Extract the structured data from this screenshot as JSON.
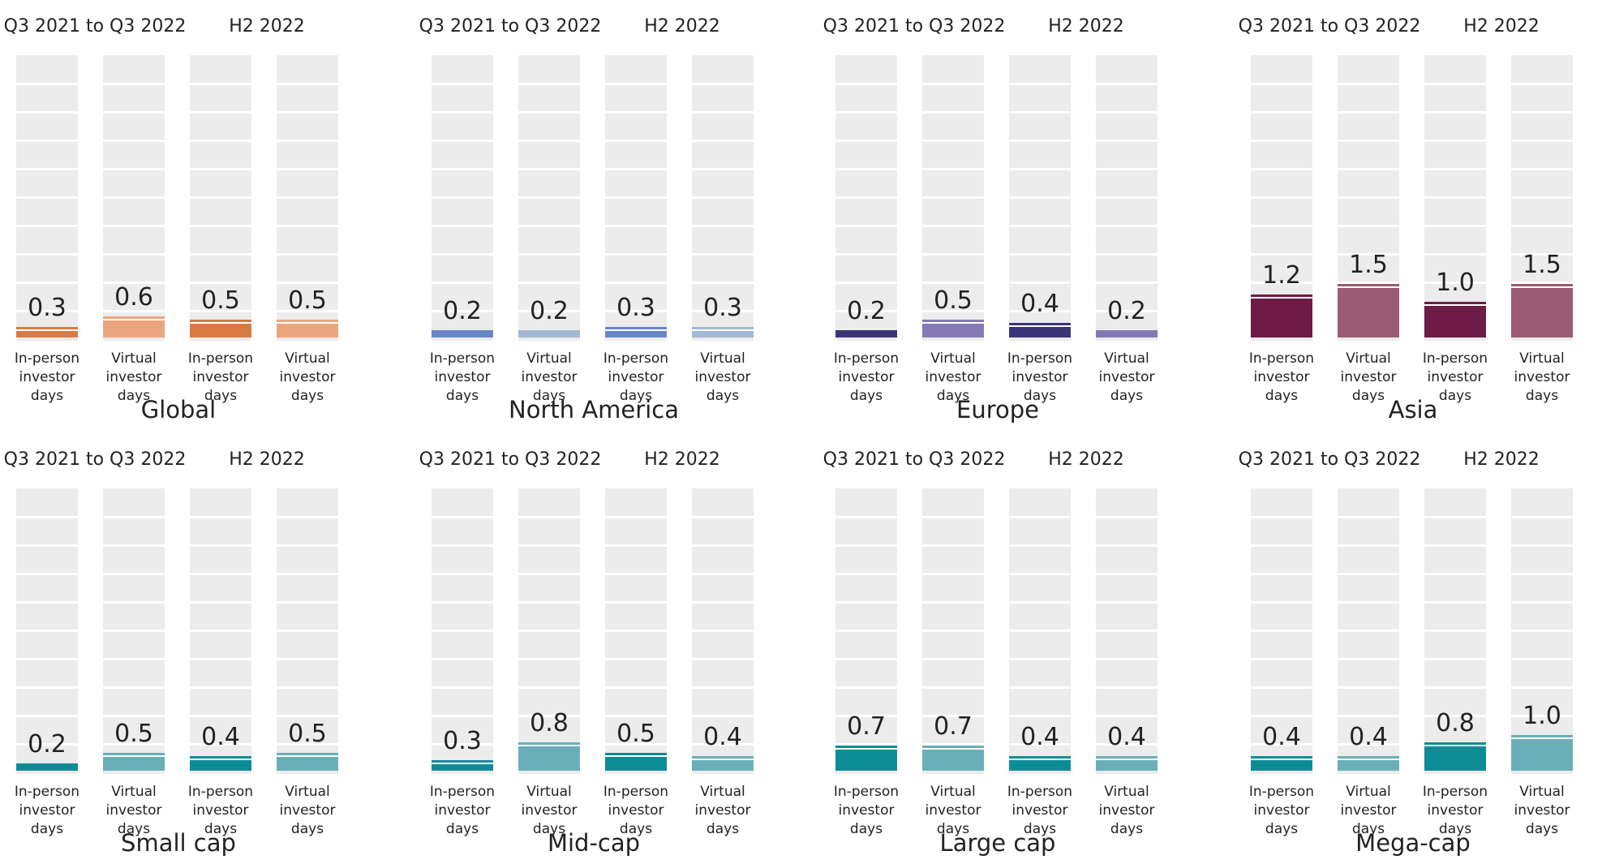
{
  "periods": [
    "Q3 2021 to Q3 2022",
    "H2 2022"
  ],
  "categories": [
    "In-person investor days",
    "Virtual investor days",
    "In-person investor days",
    "Virtual investor days"
  ],
  "category_lines": [
    [
      "In-person",
      "investor days"
    ],
    [
      "Virtual",
      "investor days"
    ],
    [
      "In-person",
      "investor days"
    ],
    [
      "Virtual",
      "investor days"
    ]
  ],
  "chart_data": [
    {
      "type": "bar",
      "title": "Global",
      "values": [
        0.3,
        0.6,
        0.5,
        0.5
      ],
      "labels": [
        "0.3",
        "0.6",
        "0.5",
        "0.5"
      ],
      "colors": [
        "#d97a45",
        "#eba57f",
        "#d97a45",
        "#eba57f"
      ]
    },
    {
      "type": "bar",
      "title": "North America",
      "values": [
        0.2,
        0.2,
        0.3,
        0.3
      ],
      "labels": [
        "0.2",
        "0.2",
        "0.3",
        "0.3"
      ],
      "colors": [
        "#6a86c9",
        "#a3b9d4",
        "#6a86c9",
        "#a3b9d4"
      ]
    },
    {
      "type": "bar",
      "title": "Europe",
      "values": [
        0.2,
        0.5,
        0.4,
        0.2
      ],
      "labels": [
        "0.2",
        "0.5",
        "0.4",
        "0.2"
      ],
      "colors": [
        "#3b3479",
        "#8479b4",
        "#3b3479",
        "#8479b4"
      ]
    },
    {
      "type": "bar",
      "title": "Asia",
      "values": [
        1.2,
        1.5,
        1.0,
        1.5
      ],
      "labels": [
        "1.2",
        "1.5",
        "1.0",
        "1.5"
      ],
      "colors": [
        "#6e1b45",
        "#9b5b74",
        "#6e1b45",
        "#9b5b74"
      ]
    },
    {
      "type": "bar",
      "title": "Small cap",
      "values": [
        0.2,
        0.5,
        0.4,
        0.5
      ],
      "labels": [
        "0.2",
        "0.5",
        "0.4",
        "0.5"
      ],
      "colors": [
        "#0e8c96",
        "#6aaeb8",
        "#0e8c96",
        "#6aaeb8"
      ]
    },
    {
      "type": "bar",
      "title": "Mid-cap",
      "values": [
        0.3,
        0.8,
        0.5,
        0.4
      ],
      "labels": [
        "0.3",
        "0.8",
        "0.5",
        "0.4"
      ],
      "colors": [
        "#0e8c96",
        "#6aaeb8",
        "#0e8c96",
        "#6aaeb8"
      ]
    },
    {
      "type": "bar",
      "title": "Large cap",
      "values": [
        0.7,
        0.7,
        0.4,
        0.4
      ],
      "labels": [
        "0.7",
        "0.7",
        "0.4",
        "0.4"
      ],
      "colors": [
        "#0e8c96",
        "#6aaeb8",
        "#0e8c96",
        "#6aaeb8"
      ]
    },
    {
      "type": "bar",
      "title": "Mega-cap",
      "values": [
        0.4,
        0.4,
        0.8,
        1.0
      ],
      "labels": [
        "0.4",
        "0.4",
        "0.8",
        "1.0"
      ],
      "colors": [
        "#0e8c96",
        "#6aaeb8",
        "#0e8c96",
        "#6aaeb8"
      ]
    }
  ]
}
